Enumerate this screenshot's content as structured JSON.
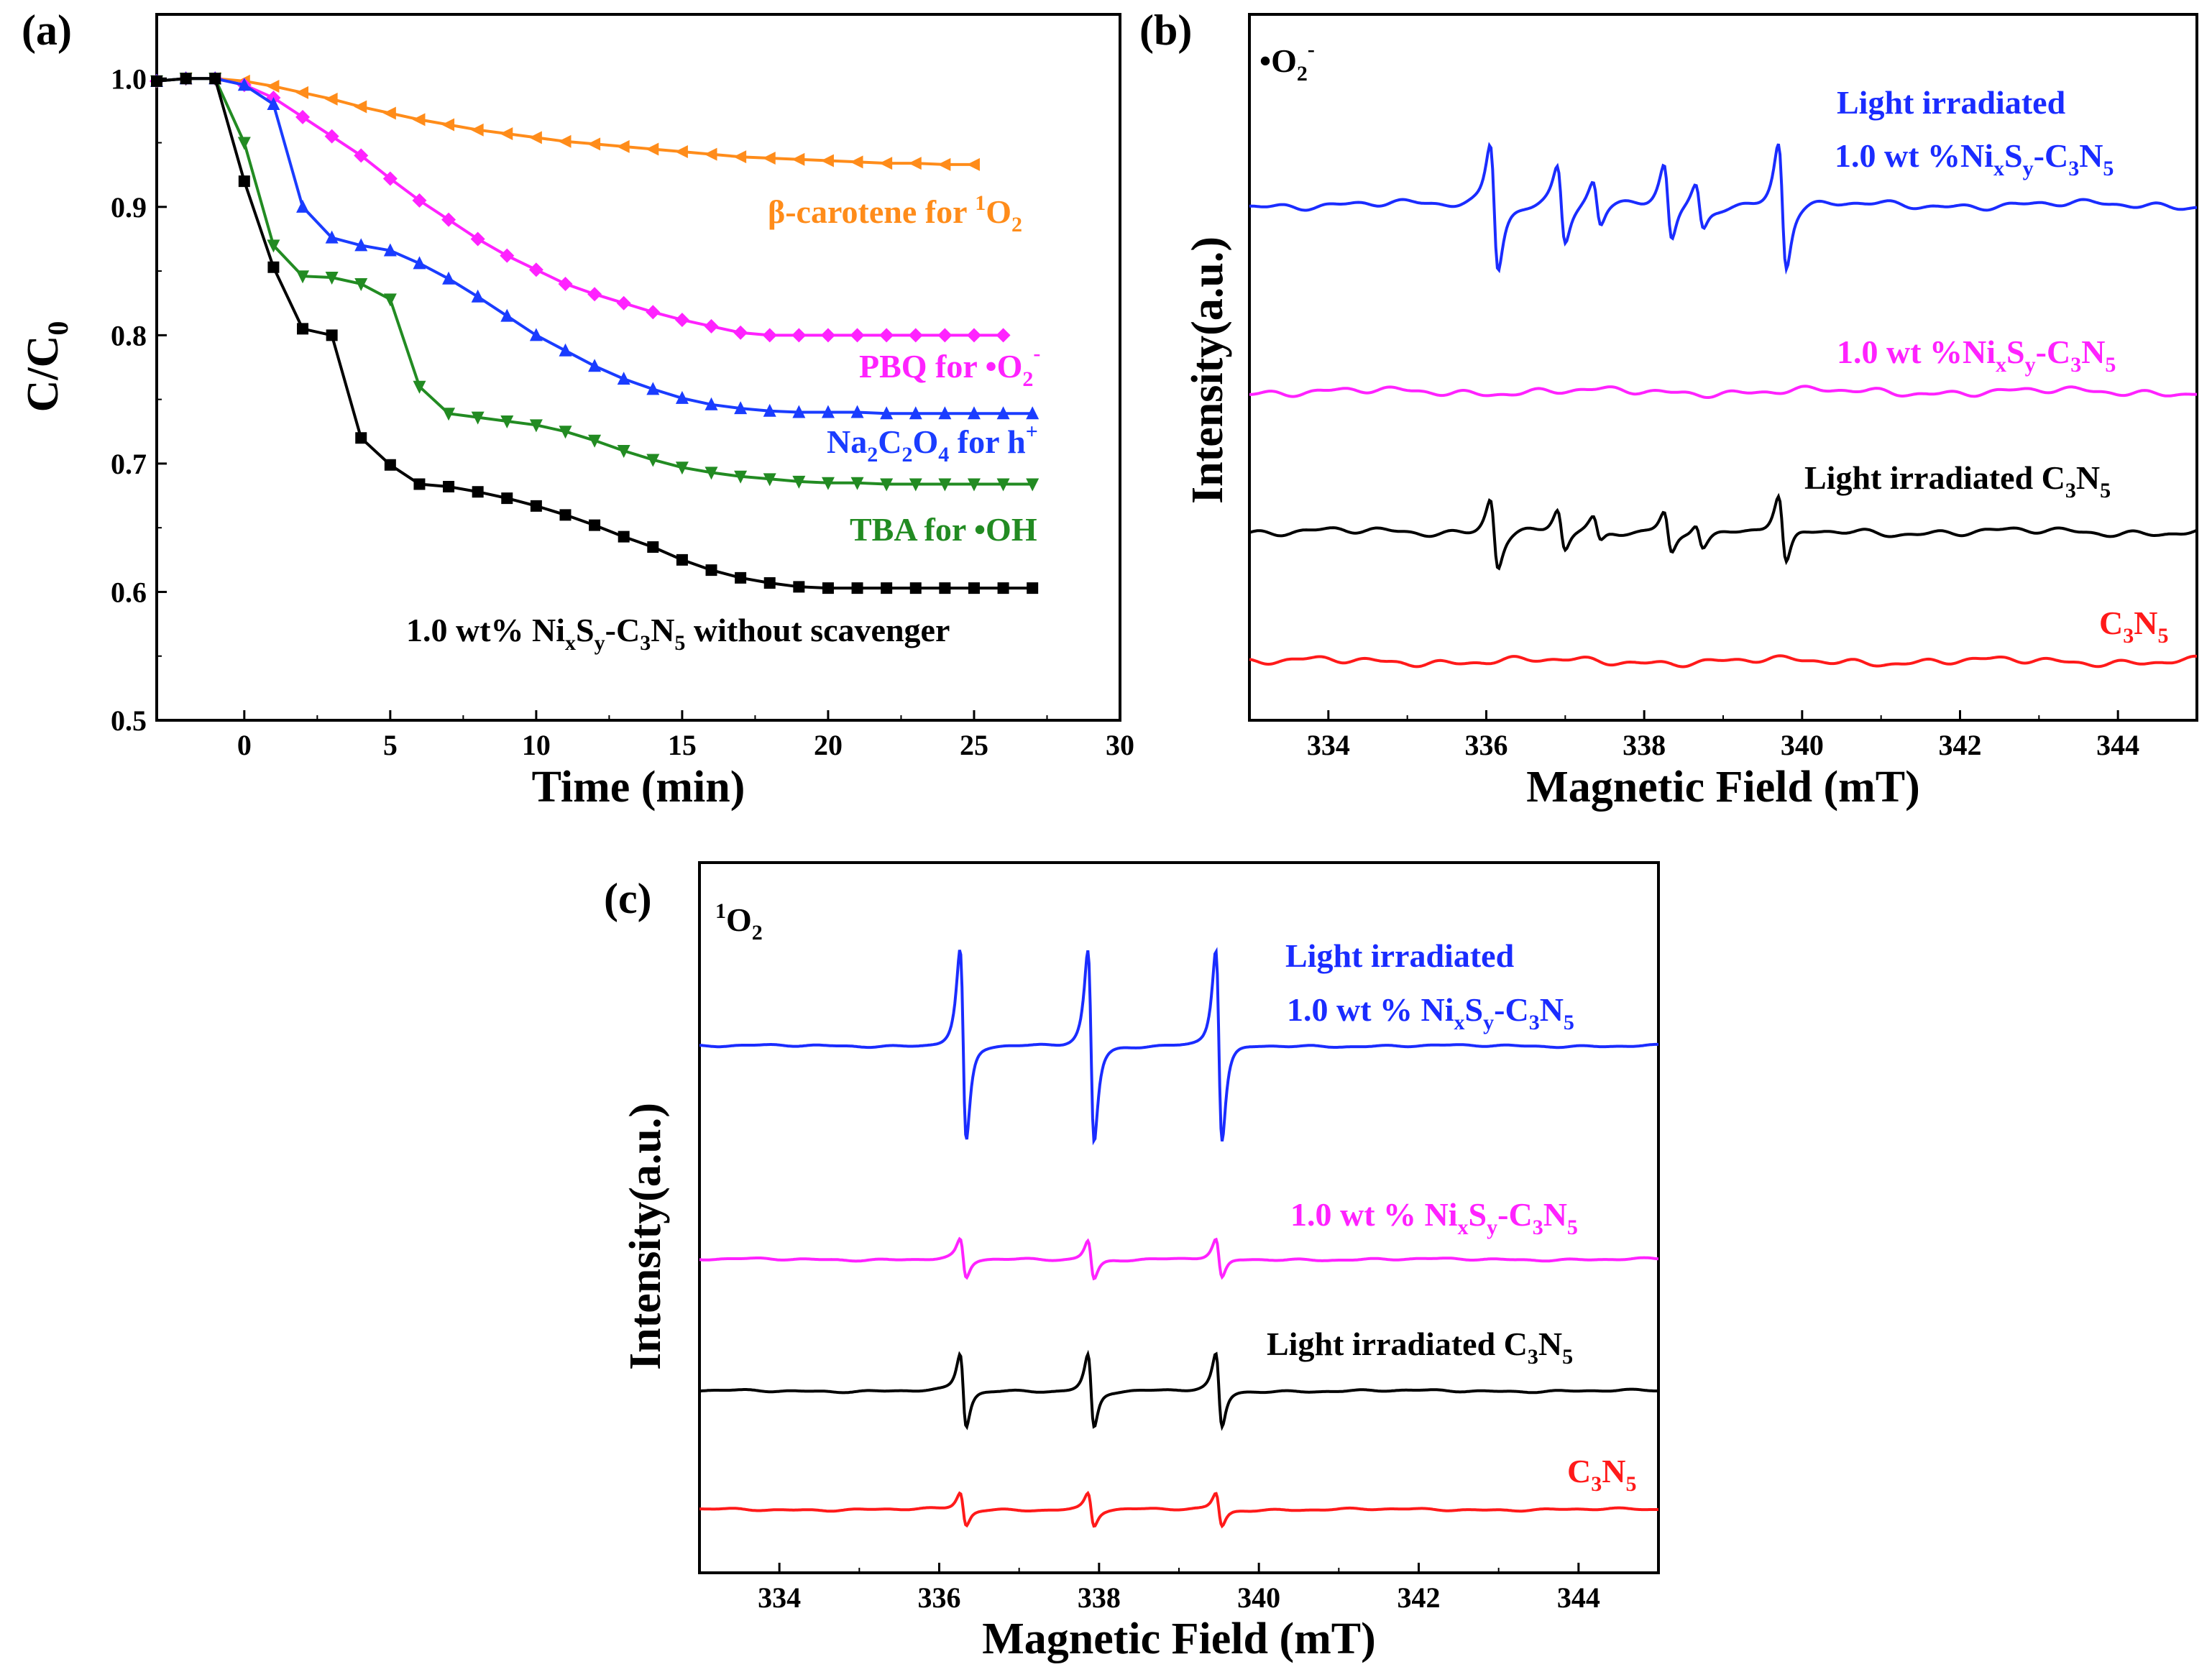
{
  "chart_data": [
    {
      "id": "a",
      "type": "line",
      "panel_label": "(a)",
      "xlabel": "Time (min)",
      "ylabel": "C/C₀",
      "ylabel_main": "C/C",
      "ylabel_sub": "0",
      "xlim": [
        -3,
        30
      ],
      "ylim": [
        0.5,
        1.05
      ],
      "xticks": [
        0,
        5,
        10,
        15,
        20,
        25,
        30
      ],
      "yticks": [
        0.5,
        0.6,
        0.7,
        0.8,
        0.9,
        1.0
      ],
      "series": [
        {
          "name": "β-carotene for ¹O₂",
          "color": "#ff8c1a",
          "marker": "left-triangle",
          "x": [
            -2,
            -1,
            0,
            1,
            2,
            3,
            4,
            5,
            6,
            7,
            8,
            9,
            10,
            11,
            12,
            13,
            14,
            15,
            16,
            17,
            18,
            19,
            20,
            21,
            22,
            23,
            24,
            25
          ],
          "y": [
            1.0,
            1.0,
            0.998,
            0.994,
            0.989,
            0.984,
            0.978,
            0.973,
            0.968,
            0.964,
            0.96,
            0.957,
            0.954,
            0.951,
            0.949,
            0.947,
            0.945,
            0.943,
            0.941,
            0.939,
            0.938,
            0.937,
            0.936,
            0.935,
            0.934,
            0.934,
            0.933,
            0.933
          ]
        },
        {
          "name": "PBQ for •O₂⁻",
          "color": "#ff22ff",
          "marker": "diamond",
          "x": [
            -3,
            -2,
            -1,
            0,
            1,
            2,
            3,
            4,
            5,
            6,
            7,
            8,
            9,
            10,
            11,
            12,
            13,
            14,
            15,
            16,
            17,
            18,
            19,
            20,
            21,
            22,
            23,
            24,
            25,
            26
          ],
          "y": [
            0.998,
            1.0,
            1.0,
            0.995,
            0.985,
            0.97,
            0.955,
            0.94,
            0.922,
            0.905,
            0.89,
            0.875,
            0.862,
            0.851,
            0.84,
            0.832,
            0.825,
            0.818,
            0.812,
            0.807,
            0.802,
            0.8,
            0.8,
            0.8,
            0.8,
            0.8,
            0.8,
            0.8,
            0.8,
            0.8
          ]
        },
        {
          "name": "Na₂C₂O₄ for h⁺",
          "color": "#1a3cff",
          "marker": "triangle",
          "x": [
            -3,
            -2,
            -1,
            0,
            1,
            2,
            3,
            4,
            5,
            6,
            7,
            8,
            9,
            10,
            11,
            12,
            13,
            14,
            15,
            16,
            17,
            18,
            19,
            20,
            21,
            22,
            23,
            24,
            25,
            26,
            27
          ],
          "y": [
            0.998,
            1.0,
            1.0,
            0.995,
            0.98,
            0.9,
            0.876,
            0.87,
            0.866,
            0.856,
            0.844,
            0.83,
            0.815,
            0.8,
            0.788,
            0.776,
            0.766,
            0.758,
            0.751,
            0.746,
            0.743,
            0.741,
            0.74,
            0.74,
            0.74,
            0.739,
            0.739,
            0.739,
            0.739,
            0.739,
            0.739
          ]
        },
        {
          "name": "TBA for •OH",
          "color": "#228b22",
          "marker": "down-triangle",
          "x": [
            -3,
            -2,
            -1,
            0,
            1,
            2,
            3,
            4,
            5,
            6,
            7,
            8,
            9,
            10,
            11,
            12,
            13,
            14,
            15,
            16,
            17,
            18,
            19,
            20,
            21,
            22,
            23,
            24,
            25,
            26,
            27
          ],
          "y": [
            0.998,
            1.0,
            1.0,
            0.95,
            0.87,
            0.846,
            0.845,
            0.84,
            0.828,
            0.76,
            0.739,
            0.736,
            0.733,
            0.73,
            0.725,
            0.718,
            0.71,
            0.703,
            0.697,
            0.693,
            0.69,
            0.688,
            0.686,
            0.685,
            0.685,
            0.684,
            0.684,
            0.684,
            0.684,
            0.684,
            0.684
          ]
        },
        {
          "name": "1.0 wt% NiₓSᵧ-C₃N₅ without scavenger",
          "color": "#000000",
          "marker": "square",
          "x": [
            -3,
            -2,
            -1,
            0,
            1,
            2,
            3,
            4,
            5,
            6,
            7,
            8,
            9,
            10,
            11,
            12,
            13,
            14,
            15,
            16,
            17,
            18,
            19,
            20,
            21,
            22,
            23,
            24,
            25,
            26,
            27
          ],
          "y": [
            0.998,
            1.0,
            1.0,
            0.92,
            0.853,
            0.805,
            0.8,
            0.72,
            0.699,
            0.684,
            0.682,
            0.678,
            0.673,
            0.667,
            0.66,
            0.652,
            0.643,
            0.635,
            0.625,
            0.617,
            0.611,
            0.607,
            0.604,
            0.603,
            0.603,
            0.603,
            0.603,
            0.603,
            0.603,
            0.603,
            0.603
          ]
        }
      ],
      "labels": [
        {
          "main": "β-carotene for ",
          "sup": "1",
          "after": "O",
          "sub": "2",
          "color": "#ff8c1a"
        },
        {
          "main": "PBQ for •O",
          "sub": "2",
          "sup": "-",
          "color": "#ff22ff"
        },
        {
          "main": "Na",
          "s1": "2",
          "m2": "C",
          "s2": "2",
          "m3": "O",
          "s3": "4",
          "m4": " for h",
          "sup": "+",
          "color": "#1a3cff"
        },
        {
          "main": "TBA for •OH",
          "color": "#228b22"
        },
        {
          "main": "1.0 wt% Ni",
          "s1": "x",
          "m2": "S",
          "s2": "y",
          "m3": "-C",
          "s3": "3",
          "m4": "N",
          "s4": "5",
          "m5": " without scavenger",
          "color": "#000000"
        }
      ]
    },
    {
      "id": "b",
      "type": "line",
      "panel_label": "(b)",
      "species_main": "•O",
      "species_sub": "2",
      "species_sup": "-",
      "xlabel": "Magnetic Field (mT)",
      "ylabel": "Intensity(a.u.)",
      "xlim": [
        333,
        345
      ],
      "xticks": [
        334,
        336,
        338,
        340,
        342,
        344
      ],
      "line_positions_mT": [
        336.1,
        336.95,
        337.4,
        338.3,
        338.7,
        339.75
      ],
      "line_relative_heights": [
        1.0,
        0.6,
        0.35,
        0.6,
        0.35,
        1.0
      ],
      "series": [
        {
          "name": "Light irradiated 1.0 wt %NiₓSᵧ-C₃N₅",
          "color": "#1a2cff",
          "amplitude": 1.0
        },
        {
          "name": "1.0 wt %NiₓSᵧ-C₃N₅",
          "color": "#ff22ff",
          "amplitude": 0.0
        },
        {
          "name": "Light irradiated C₃N₅",
          "color": "#000000",
          "amplitude": 0.55
        },
        {
          "name": "C₃N₅",
          "color": "#ff1a1a",
          "amplitude": 0.0
        }
      ],
      "labels": [
        {
          "line1": "Light irradiated",
          "line2_main": "1.0 wt %Ni",
          "s1": "x",
          "m2": "S",
          "s2": "y",
          "m3": "-C",
          "s3": "3",
          "m4": "N",
          "s4": "5",
          "color": "#1a2cff"
        },
        {
          "main": "1.0 wt %Ni",
          "s1": "x",
          "m2": "S",
          "s2": "y",
          "m3": "-C",
          "s3": "3",
          "m4": "N",
          "s4": "5",
          "color": "#ff22ff"
        },
        {
          "main": "Light irradiated C",
          "s1": "3",
          "m2": "N",
          "s2": "5",
          "color": "#000000"
        },
        {
          "main": "C",
          "s1": "3",
          "m2": "N",
          "s2": "5",
          "color": "#ff1a1a"
        }
      ]
    },
    {
      "id": "c",
      "type": "line",
      "panel_label": "(c)",
      "species_sup": "1",
      "species_main": "O",
      "species_sub": "2",
      "xlabel": "Magnetic Field (mT)",
      "ylabel": "Intensity(a.u.)",
      "xlim": [
        333,
        345
      ],
      "xticks": [
        334,
        336,
        338,
        340,
        342,
        344
      ],
      "line_positions_mT": [
        336.3,
        337.9,
        339.5
      ],
      "series": [
        {
          "name": "Light irradiated 1.0 wt % NiₓSᵧ-C₃N₅",
          "color": "#1a2cff",
          "amplitude": 1.0
        },
        {
          "name": "1.0 wt % NiₓSᵧ-C₃N₅",
          "color": "#ff22ff",
          "amplitude": 0.2
        },
        {
          "name": "Light irradiated C₃N₅",
          "color": "#000000",
          "amplitude": 0.38
        },
        {
          "name": "C₃N₅",
          "color": "#ff1a1a",
          "amplitude": 0.17
        }
      ],
      "labels": [
        {
          "line1": "Light irradiated",
          "line2_main": "1.0 wt % Ni",
          "s1": "x",
          "m2": "S",
          "s2": "y",
          "m3": "-C",
          "s3": "3",
          "m4": "N",
          "s4": "5",
          "color": "#1a2cff"
        },
        {
          "main": "1.0 wt % Ni",
          "s1": "x",
          "m2": "S",
          "s2": "y",
          "m3": "-C",
          "s3": "3",
          "m4": "N",
          "s4": "5",
          "color": "#ff22ff"
        },
        {
          "main": "Light irradiated C",
          "s1": "3",
          "m2": "N",
          "s2": "5",
          "color": "#000000"
        },
        {
          "main": "C",
          "s1": "3",
          "m2": "N",
          "s2": "5",
          "color": "#ff1a1a"
        }
      ]
    }
  ]
}
